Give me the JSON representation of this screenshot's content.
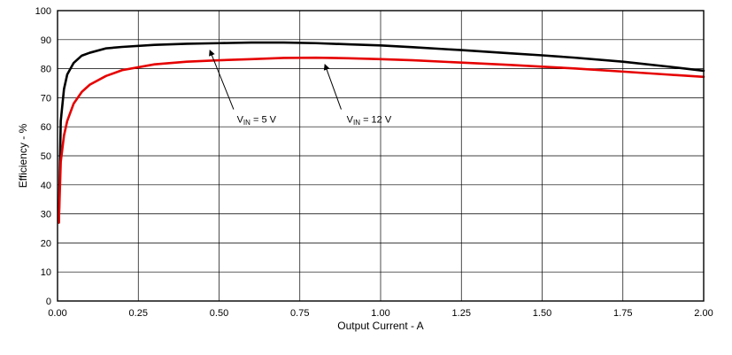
{
  "chart_data": {
    "type": "line",
    "title": "",
    "xlabel": "Output Current - A",
    "ylabel": "Efficiency - %",
    "xlim": [
      0,
      2
    ],
    "ylim": [
      0,
      100
    ],
    "grid": true,
    "legend_position": "none",
    "x_tick_labels": [
      "0.00",
      "0.25",
      "0.50",
      "0.75",
      "1.00",
      "1.25",
      "1.50",
      "1.75",
      "2.00"
    ],
    "y_tick_labels": [
      "0",
      "10",
      "20",
      "30",
      "40",
      "50",
      "60",
      "70",
      "80",
      "90",
      "100"
    ],
    "x": [
      0.004,
      0.01,
      0.02,
      0.03,
      0.05,
      0.075,
      0.1,
      0.15,
      0.2,
      0.3,
      0.4,
      0.5,
      0.6,
      0.7,
      0.8,
      0.9,
      1.0,
      1.1,
      1.25,
      1.4,
      1.5,
      1.6,
      1.75,
      1.9,
      2.0
    ],
    "series": [
      {
        "name": "VIN = 5 V",
        "color": "#000000",
        "values": [
          27,
          62,
          73,
          78,
          82,
          84.5,
          85.5,
          87,
          87.5,
          88.2,
          88.6,
          88.8,
          89,
          89,
          88.8,
          88.4,
          88,
          87.4,
          86.4,
          85.3,
          84.6,
          83.8,
          82.4,
          80.6,
          79.3
        ]
      },
      {
        "name": "VIN = 12 V",
        "color": "#e60000",
        "values": [
          27,
          48,
          57,
          62,
          68,
          72,
          74.5,
          77.5,
          79.5,
          81.5,
          82.4,
          82.9,
          83.3,
          83.7,
          83.8,
          83.6,
          83.3,
          82.9,
          82.1,
          81.3,
          80.7,
          80.1,
          79,
          77.9,
          77.2
        ]
      }
    ],
    "annotations": [
      {
        "main": "V",
        "sub": "IN",
        "rest": " = 5 V",
        "text_x": 0.555,
        "text_y": 61.5,
        "arrow_from_x": 0.545,
        "arrow_from_y": 66,
        "arrow_to_x": 0.472,
        "arrow_to_y": 86.2
      },
      {
        "main": "V",
        "sub": "IN",
        "rest": " = 12 V",
        "text_x": 0.895,
        "text_y": 61.5,
        "arrow_from_x": 0.878,
        "arrow_from_y": 66,
        "arrow_to_x": 0.828,
        "arrow_to_y": 81.3
      }
    ]
  }
}
